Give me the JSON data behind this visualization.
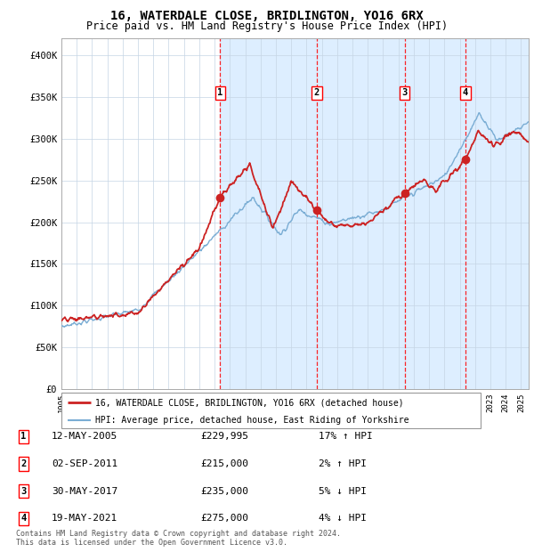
{
  "title": "16, WATERDALE CLOSE, BRIDLINGTON, YO16 6RX",
  "subtitle": "Price paid vs. HM Land Registry's House Price Index (HPI)",
  "hpi_label": "HPI: Average price, detached house, East Riding of Yorkshire",
  "price_label": "16, WATERDALE CLOSE, BRIDLINGTON, YO16 6RX (detached house)",
  "transactions": [
    {
      "num": 1,
      "date": "12-MAY-2005",
      "price": 229995,
      "pct": "17%",
      "dir": "↑",
      "year_float": 2005.36
    },
    {
      "num": 2,
      "date": "02-SEP-2011",
      "price": 215000,
      "pct": "2%",
      "dir": "↑",
      "year_float": 2011.67
    },
    {
      "num": 3,
      "date": "30-MAY-2017",
      "price": 235000,
      "pct": "5%",
      "dir": "↓",
      "year_float": 2017.41
    },
    {
      "num": 4,
      "date": "19-MAY-2021",
      "price": 275000,
      "pct": "4%",
      "dir": "↓",
      "year_float": 2021.38
    }
  ],
  "xmin": 1995.0,
  "xmax": 2025.5,
  "ymin": 0,
  "ymax": 420000,
  "yticks": [
    0,
    50000,
    100000,
    150000,
    200000,
    250000,
    300000,
    350000,
    400000
  ],
  "ytick_labels": [
    "£0",
    "£50K",
    "£100K",
    "£150K",
    "£200K",
    "£250K",
    "£300K",
    "£350K",
    "£400K"
  ],
  "xtick_years": [
    1995,
    1996,
    1997,
    1998,
    1999,
    2000,
    2001,
    2002,
    2003,
    2004,
    2005,
    2006,
    2007,
    2008,
    2009,
    2010,
    2011,
    2012,
    2013,
    2014,
    2015,
    2016,
    2017,
    2018,
    2019,
    2020,
    2021,
    2022,
    2023,
    2024,
    2025
  ],
  "price_color": "#cc2222",
  "hpi_color": "#7aadd4",
  "bg_color": "#ddeeff",
  "shade_start": 2005.36,
  "footer": "Contains HM Land Registry data © Crown copyright and database right 2024.\nThis data is licensed under the Open Government Licence v3.0."
}
